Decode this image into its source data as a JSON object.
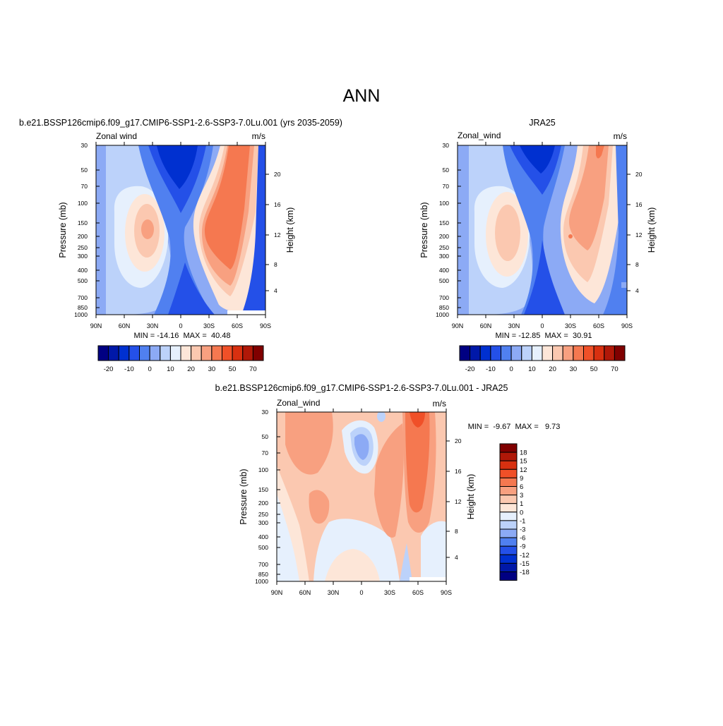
{
  "page_title": "ANN",
  "chart_data": [
    {
      "type": "heatmap",
      "id": "model",
      "title": "b.e21.BSSP126cmip6.f09_g17.CMIP6-SSP1-2.6-SSP3-7.0Lu.001 (yrs 2035-2059)",
      "left_label": "Zonal wind",
      "right_label": "m/s",
      "ylabel": "Pressure (mb)",
      "y2label": "Height (km)",
      "x_ticks": [
        "90N",
        "60N",
        "30N",
        "0",
        "30S",
        "60S",
        "90S"
      ],
      "y_ticks": [
        "30",
        "50",
        "70",
        "100",
        "150",
        "200",
        "250",
        "300",
        "400",
        "500",
        "700",
        "850",
        "1000"
      ],
      "y2_ticks": [
        "20",
        "16",
        "12",
        "8",
        "4"
      ],
      "stats": "MIN = -14.16  MAX =  40.48",
      "min": -14.16,
      "max": 40.48,
      "colorbar": {
        "orientation": "horizontal",
        "labels": [
          "-20",
          "-10",
          "0",
          "10",
          "20",
          "30",
          "50",
          "70"
        ],
        "colors": [
          "#000082",
          "#0018a8",
          "#0030d0",
          "#2450e8",
          "#5080f0",
          "#8caaf5",
          "#bcd2fa",
          "#e6f0fd",
          "#fde6d8",
          "#fbc8b0",
          "#f8a080",
          "#f57850",
          "#f05028",
          "#d83010",
          "#b01808",
          "#800000"
        ]
      }
    },
    {
      "type": "heatmap",
      "id": "obs",
      "title": "JRA25",
      "left_label": "Zonal_wind",
      "right_label": "m/s",
      "ylabel": "Pressure (mb)",
      "y2label": "Height (km)",
      "x_ticks": [
        "90N",
        "60N",
        "30N",
        "0",
        "30S",
        "60S",
        "90S"
      ],
      "y_ticks": [
        "30",
        "50",
        "70",
        "100",
        "150",
        "200",
        "250",
        "300",
        "400",
        "500",
        "700",
        "850",
        "1000"
      ],
      "y2_ticks": [
        "20",
        "16",
        "12",
        "8",
        "4"
      ],
      "stats": "MIN = -12.85  MAX =  30.91",
      "min": -12.85,
      "max": 30.91,
      "colorbar": {
        "orientation": "horizontal",
        "labels": [
          "-20",
          "-10",
          "0",
          "10",
          "20",
          "30",
          "50",
          "70"
        ],
        "colors": [
          "#000082",
          "#0018a8",
          "#0030d0",
          "#2450e8",
          "#5080f0",
          "#8caaf5",
          "#bcd2fa",
          "#e6f0fd",
          "#fde6d8",
          "#fbc8b0",
          "#f8a080",
          "#f57850",
          "#f05028",
          "#d83010",
          "#b01808",
          "#800000"
        ]
      }
    },
    {
      "type": "heatmap",
      "id": "diff",
      "title": "b.e21.BSSP126cmip6.f09_g17.CMIP6-SSP1-2.6-SSP3-7.0Lu.001 - JRA25",
      "left_label": "Zonal_wind",
      "right_label": "m/s",
      "ylabel": "Pressure (mb)",
      "y2label": "Height (km)",
      "x_ticks": [
        "90N",
        "60N",
        "30N",
        "0",
        "30S",
        "60S",
        "90S"
      ],
      "y_ticks": [
        "30",
        "50",
        "70",
        "100",
        "150",
        "200",
        "250",
        "300",
        "400",
        "500",
        "700",
        "850",
        "1000"
      ],
      "y2_ticks": [
        "20",
        "16",
        "12",
        "8",
        "4"
      ],
      "stats": "MIN =  -9.67  MAX =   9.73",
      "min": -9.67,
      "max": 9.73,
      "colorbar": {
        "orientation": "vertical",
        "labels": [
          "18",
          "15",
          "12",
          "9",
          "6",
          "3",
          "1",
          "0",
          "-1",
          "-3",
          "-6",
          "-9",
          "-12",
          "-15",
          "-18"
        ],
        "colors": [
          "#800000",
          "#b01808",
          "#d83010",
          "#f05028",
          "#f57850",
          "#f8a080",
          "#fbc8b0",
          "#fde6d8",
          "#e6f0fd",
          "#bcd2fa",
          "#8caaf5",
          "#5080f0",
          "#2450e8",
          "#0030d0",
          "#0018a8",
          "#000082"
        ]
      }
    }
  ]
}
